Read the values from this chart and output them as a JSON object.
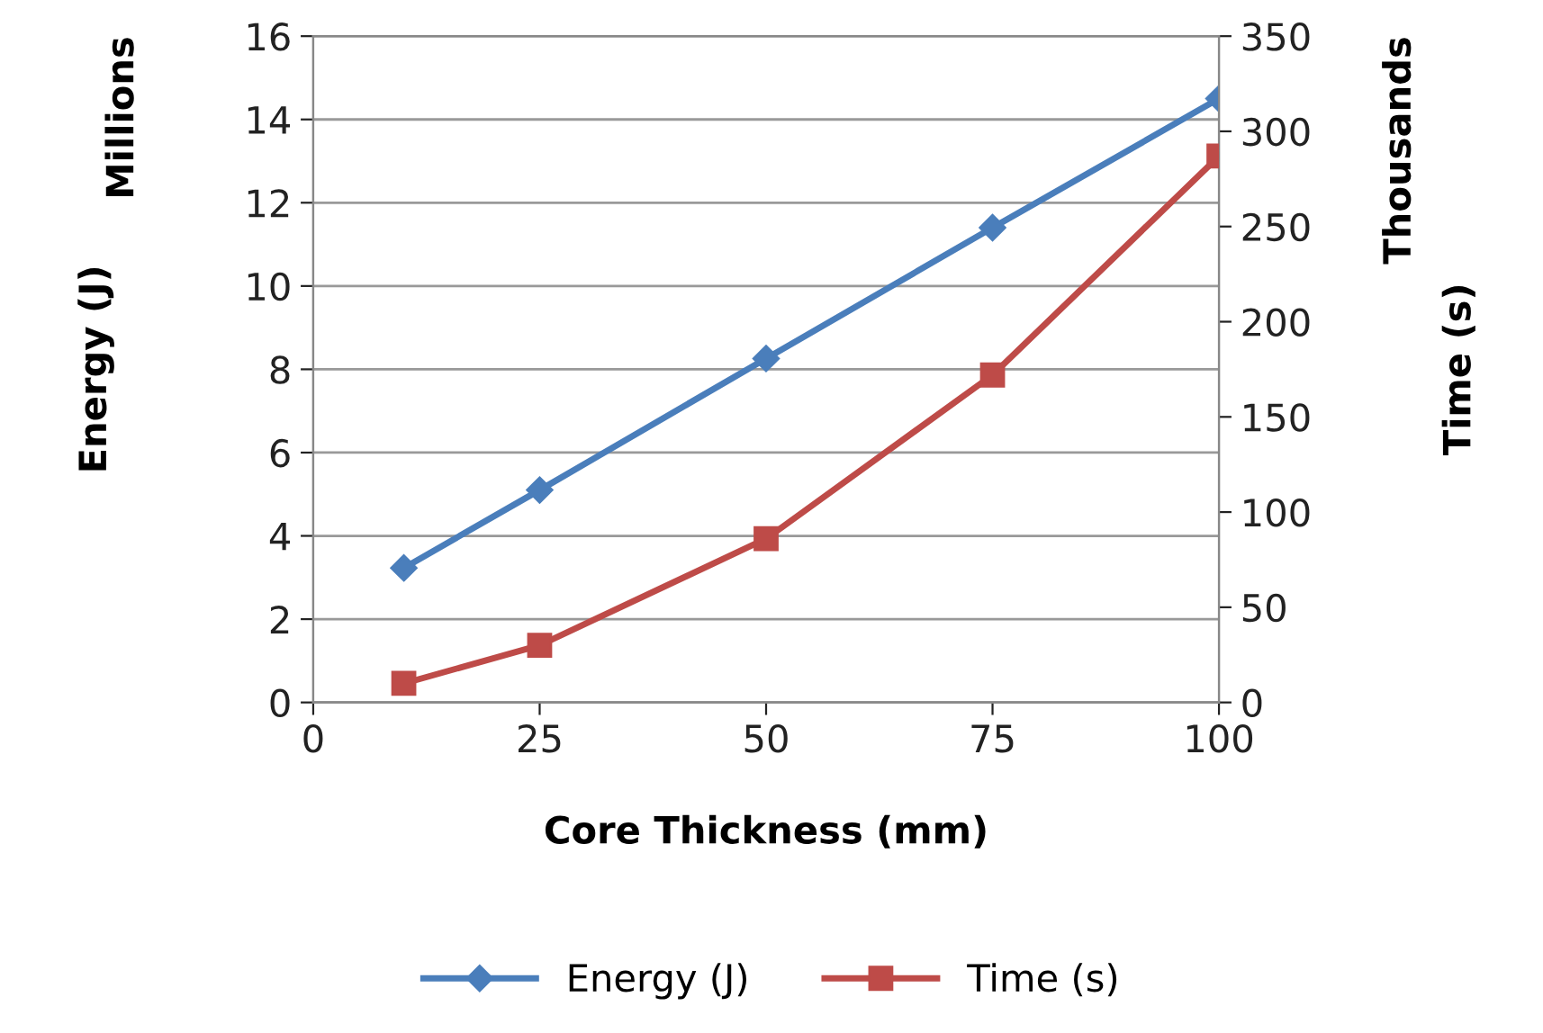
{
  "chart_data": {
    "type": "line",
    "xlabel": "Core Thickness (mm)",
    "ylabel": "Energy (J)",
    "y2label": "Time (s)",
    "annotations": [
      "Millions",
      "Thousands"
    ],
    "x": [
      10,
      25,
      50,
      75,
      100
    ],
    "xlim": [
      0,
      100
    ],
    "xticks": [
      0,
      25,
      50,
      75,
      100
    ],
    "ylim": [
      0,
      16
    ],
    "yticks": [
      0,
      2,
      4,
      6,
      8,
      10,
      12,
      14,
      16
    ],
    "y2lim": [
      0,
      350
    ],
    "y2ticks": [
      0,
      50,
      100,
      150,
      200,
      250,
      300,
      350
    ],
    "grid": "y",
    "legend": "bottom",
    "series": [
      {
        "name": "Energy (J)",
        "color": "#4a7ebb",
        "marker": "diamond",
        "values": [
          3.23,
          5.1,
          8.26,
          11.4,
          14.5
        ]
      },
      {
        "name": "Time (s)",
        "color": "#be4b48",
        "marker": "square",
        "axis": "y2",
        "values": [
          10,
          30,
          86,
          172,
          287
        ]
      }
    ]
  }
}
